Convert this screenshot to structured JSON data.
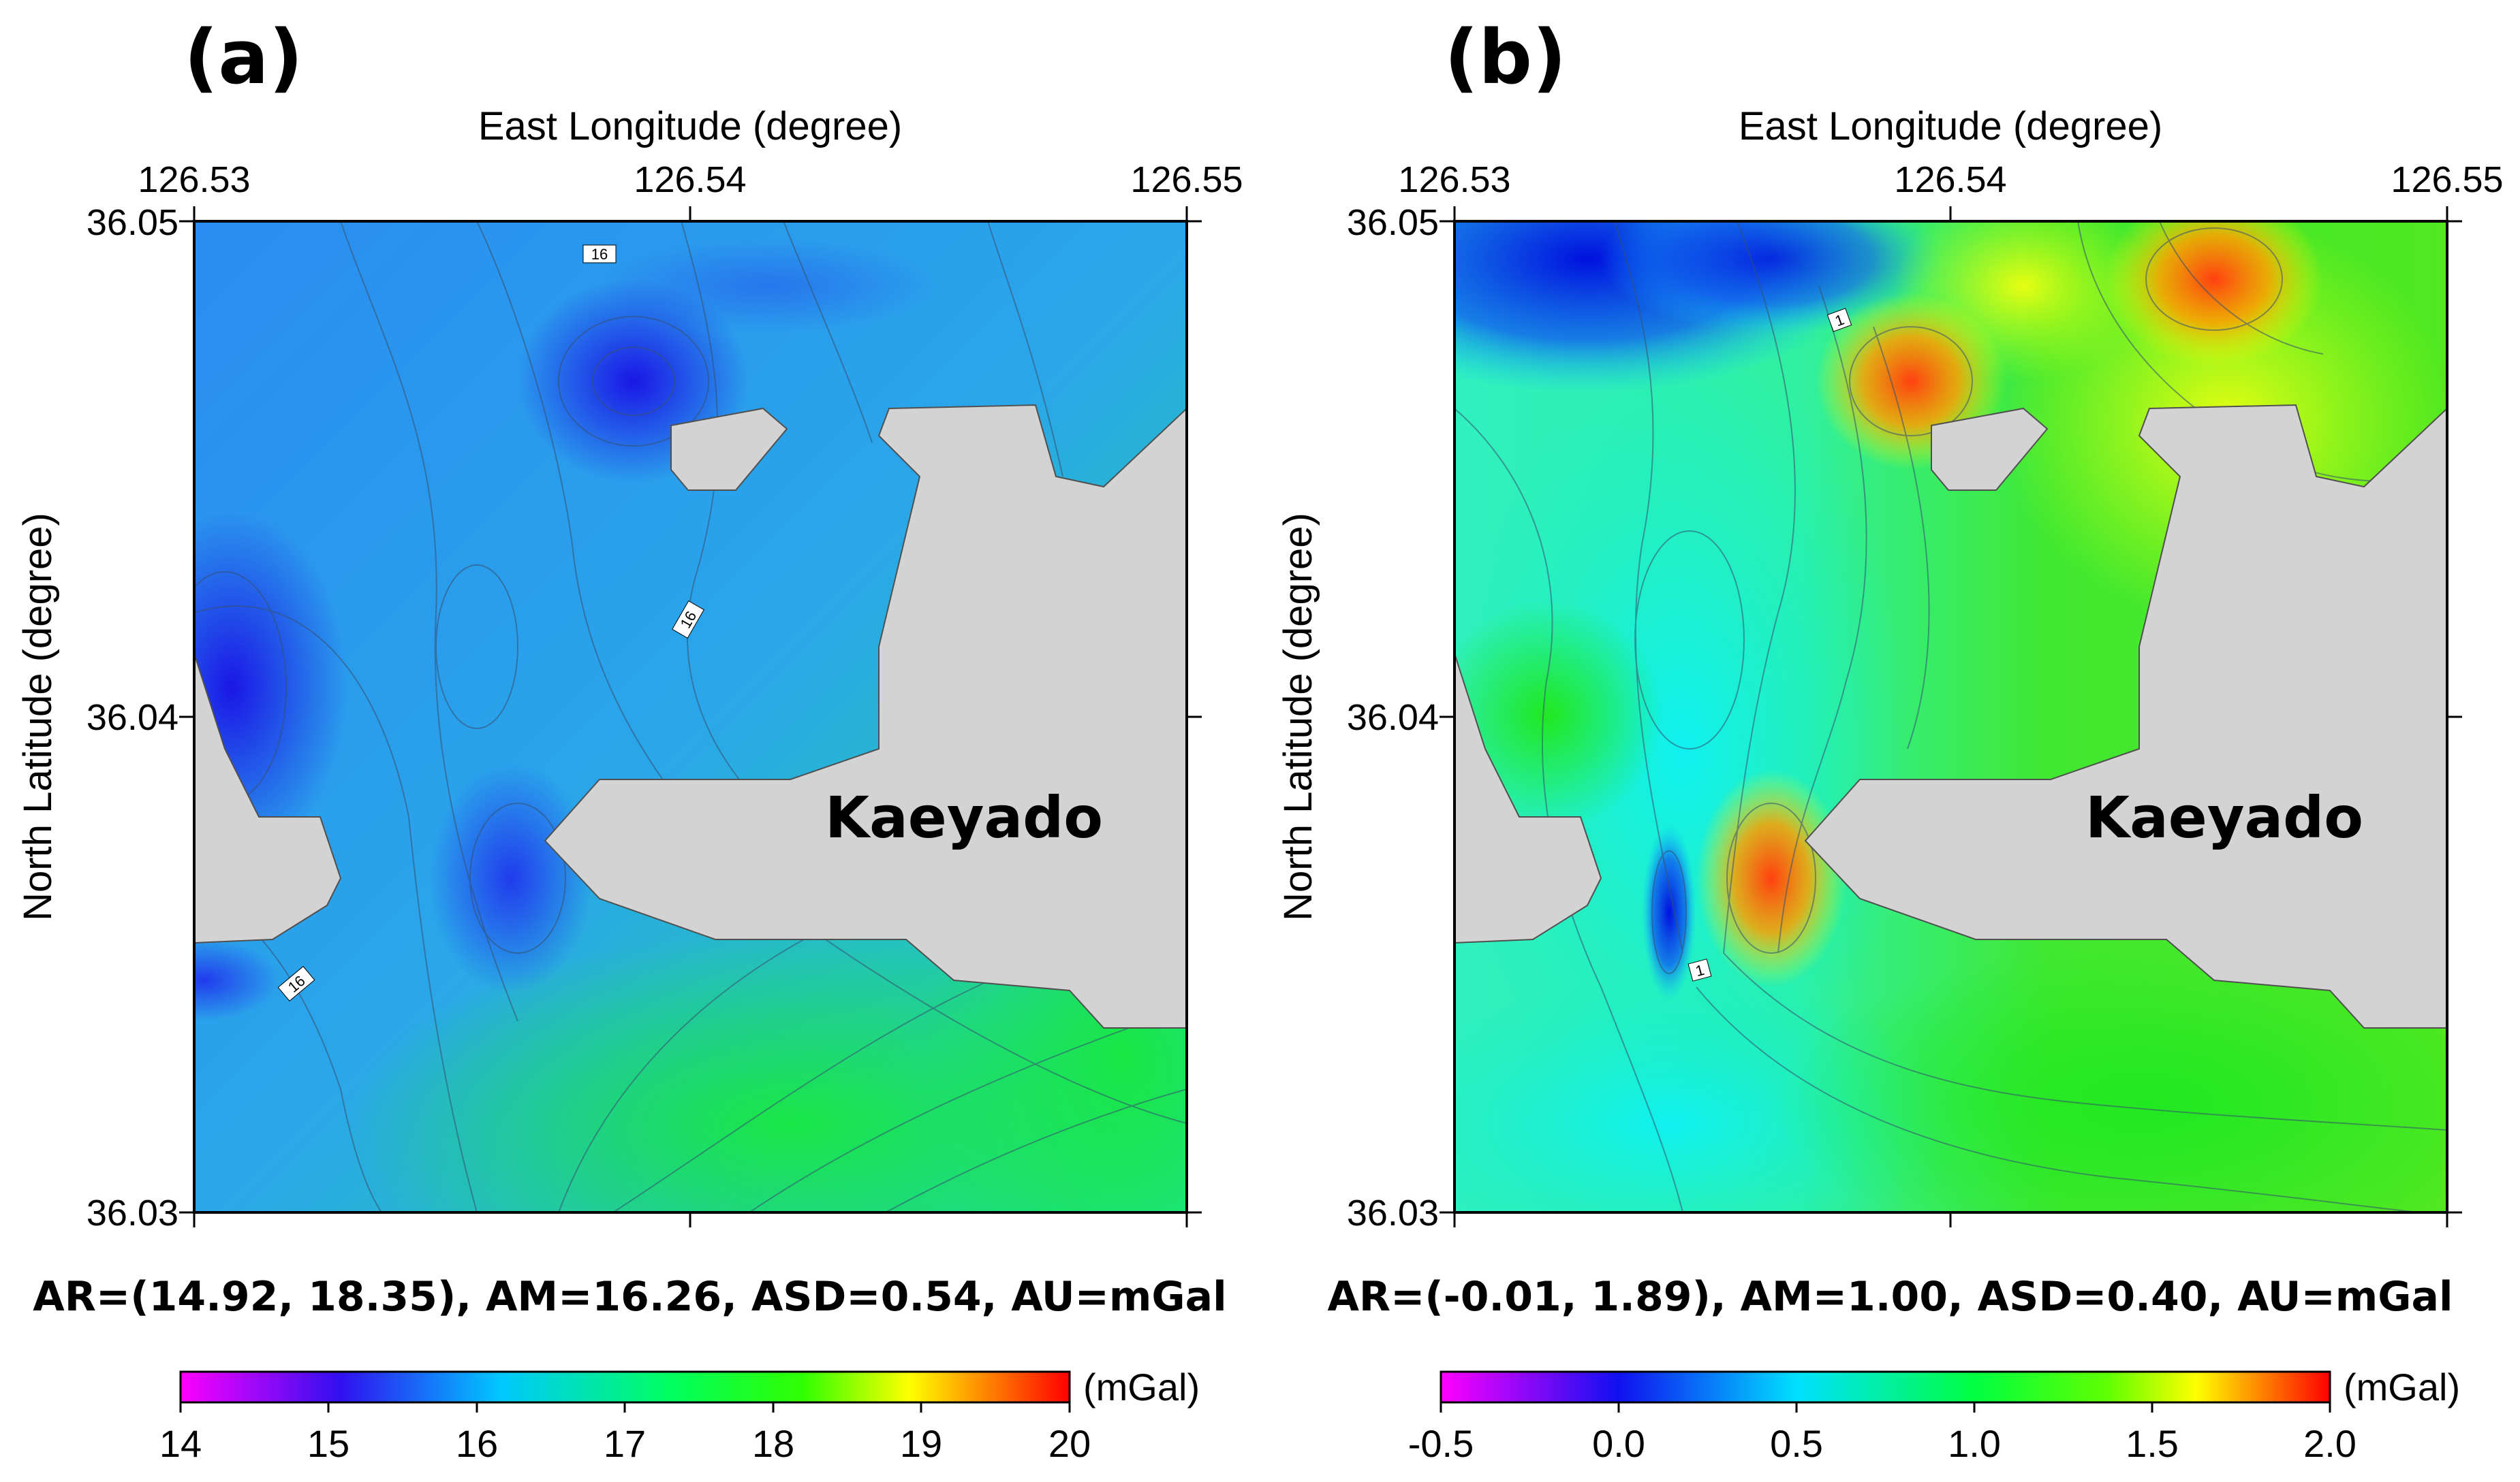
{
  "panels": [
    {
      "label": "(a)",
      "x_axis_label": "East Longitude (degree)",
      "y_axis_label": "North Latitude (degree)",
      "x_ticks": [
        "126.53",
        "126.54",
        "126.55"
      ],
      "y_ticks": [
        "36.05",
        "36.04",
        "36.03"
      ],
      "island_label": "Kaeyado",
      "contour_labels": [
        "16",
        "16",
        "16"
      ],
      "stats": "AR=(14.92, 18.35), AM=16.26, ASD=0.54, AU=mGal",
      "colorbar": {
        "unit": "(mGal)",
        "ticks": [
          "14",
          "15",
          "16",
          "17",
          "18",
          "19",
          "20"
        ]
      }
    },
    {
      "label": "(b)",
      "x_axis_label": "East Longitude (degree)",
      "y_axis_label": "North Latitude (degree)",
      "x_ticks": [
        "126.53",
        "126.54",
        "126.55"
      ],
      "y_ticks": [
        "36.05",
        "36.04",
        "36.03"
      ],
      "island_label": "Kaeyado",
      "contour_labels": [
        "1",
        "1"
      ],
      "stats": "AR=(-0.01, 1.89), AM=1.00, ASD=0.40, AU=mGal",
      "colorbar": {
        "unit": "(mGal)",
        "ticks": [
          "-0.5",
          "0.0",
          "0.5",
          "1.0",
          "1.5",
          "2.0"
        ]
      }
    }
  ],
  "colors": {
    "land": "#d3d3d3",
    "colorbar_stops": [
      "#ff00ff",
      "#0000ff",
      "#00ffff",
      "#00ff00",
      "#ffff00",
      "#ff0000"
    ]
  }
}
